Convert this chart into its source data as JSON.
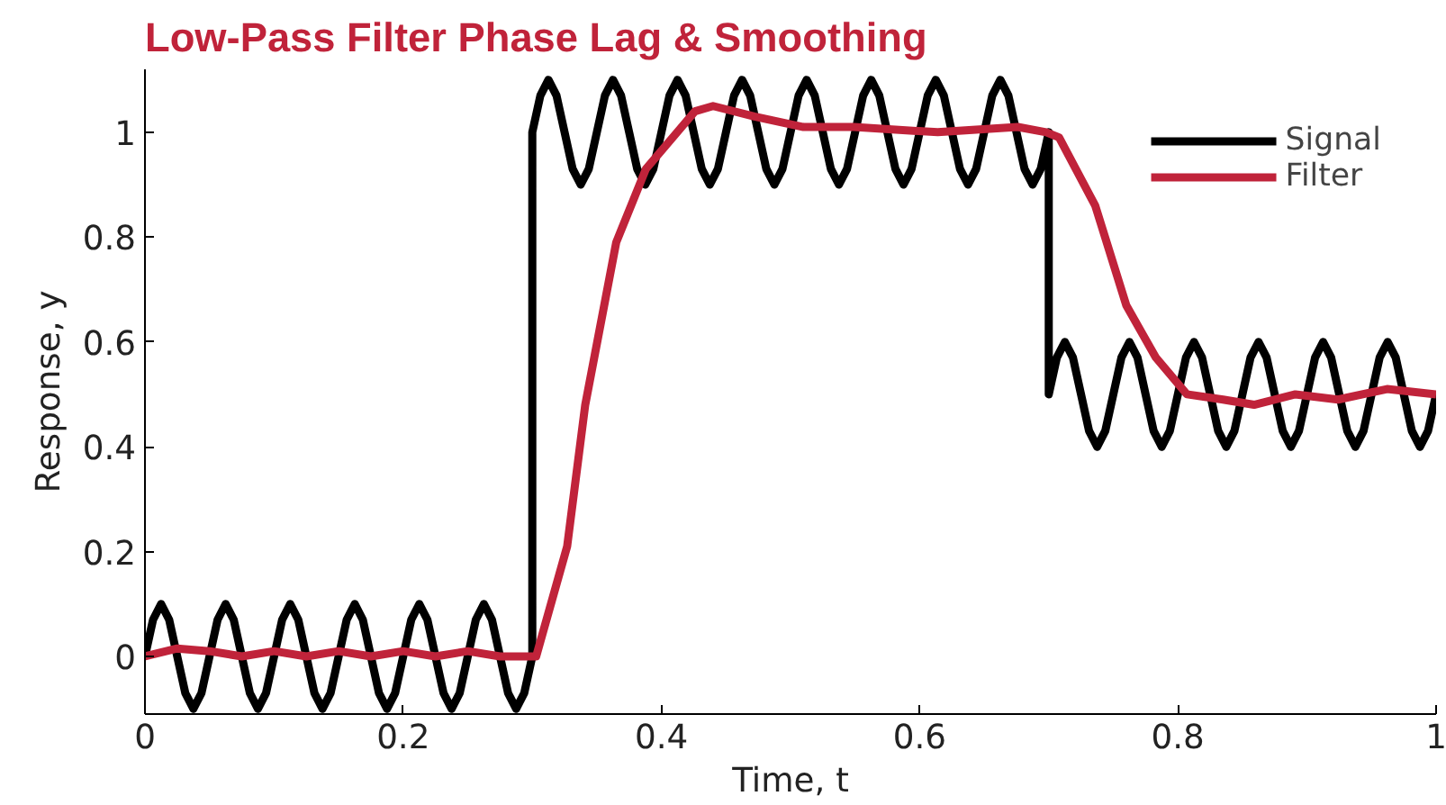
{
  "chart_data": {
    "type": "line",
    "title": "Low-Pass Filter Phase Lag & Smoothing",
    "xlabel": "Time, t",
    "ylabel": "Response, y",
    "xlim": [
      0,
      1
    ],
    "ylim": [
      -0.11,
      1.12
    ],
    "xticks": [
      0,
      0.2,
      0.4,
      0.6,
      0.8,
      1
    ],
    "yticks": [
      0,
      0.2,
      0.4,
      0.6,
      0.8,
      1
    ],
    "grid": false,
    "legend": "top right",
    "line_style": "solid",
    "marker": "none",
    "series": [
      {
        "name": "Signal",
        "color": "#000000",
        "x": [
          0,
          0.00625,
          0.0125,
          0.01875,
          0.025,
          0.03125,
          0.0375,
          0.04375,
          0.05,
          0.05625,
          0.0625,
          0.06875,
          0.075,
          0.08125,
          0.0875,
          0.09375,
          0.1,
          0.10625,
          0.1125,
          0.11875,
          0.125,
          0.13125,
          0.1375,
          0.14375,
          0.15,
          0.15625,
          0.1625,
          0.16875,
          0.175,
          0.18125,
          0.1875,
          0.19375,
          0.2,
          0.20625,
          0.2125,
          0.21875,
          0.225,
          0.23125,
          0.2375,
          0.24375,
          0.25,
          0.25625,
          0.2625,
          0.26875,
          0.275,
          0.28125,
          0.2875,
          0.29375,
          0.3,
          0.3,
          0.30625,
          0.3125,
          0.31875,
          0.325,
          0.33125,
          0.3375,
          0.34375,
          0.35,
          0.35625,
          0.3625,
          0.36875,
          0.375,
          0.38125,
          0.3875,
          0.39375,
          0.4,
          0.40625,
          0.4125,
          0.41875,
          0.425,
          0.43125,
          0.4375,
          0.44375,
          0.45,
          0.45625,
          0.4625,
          0.46875,
          0.475,
          0.48125,
          0.4875,
          0.49375,
          0.5,
          0.50625,
          0.5125,
          0.51875,
          0.525,
          0.53125,
          0.5375,
          0.54375,
          0.55,
          0.55625,
          0.5625,
          0.56875,
          0.575,
          0.58125,
          0.5875,
          0.59375,
          0.6,
          0.60625,
          0.6125,
          0.61875,
          0.625,
          0.63125,
          0.6375,
          0.64375,
          0.65,
          0.65625,
          0.6625,
          0.66875,
          0.675,
          0.68125,
          0.6875,
          0.69375,
          0.7,
          0.7,
          0.70625,
          0.7125,
          0.71875,
          0.725,
          0.73125,
          0.7375,
          0.74375,
          0.75,
          0.75625,
          0.7625,
          0.76875,
          0.775,
          0.78125,
          0.7875,
          0.79375,
          0.8,
          0.80625,
          0.8125,
          0.81875,
          0.825,
          0.83125,
          0.8375,
          0.84375,
          0.85,
          0.85625,
          0.8625,
          0.86875,
          0.875,
          0.88125,
          0.8875,
          0.89375,
          0.9,
          0.90625,
          0.9125,
          0.91875,
          0.925,
          0.93125,
          0.9375,
          0.94375,
          0.95,
          0.95625,
          0.9625,
          0.96875,
          0.975,
          0.98125,
          0.9875,
          0.99375,
          1
        ],
        "values": [
          0,
          0.07,
          0.1,
          0.07,
          0,
          -0.07,
          -0.1,
          -0.07,
          0,
          0.07,
          0.1,
          0.07,
          0,
          -0.07,
          -0.1,
          -0.07,
          0,
          0.07,
          0.1,
          0.07,
          0,
          -0.07,
          -0.1,
          -0.07,
          0,
          0.07,
          0.1,
          0.07,
          0,
          -0.07,
          -0.1,
          -0.07,
          0,
          0.07,
          0.1,
          0.07,
          0,
          -0.07,
          -0.1,
          -0.07,
          0,
          0.07,
          0.1,
          0.07,
          0,
          -0.07,
          -0.1,
          -0.07,
          0,
          1,
          1.07,
          1.1,
          1.07,
          1,
          0.93,
          0.9,
          0.93,
          1,
          1.07,
          1.1,
          1.07,
          1,
          0.93,
          0.9,
          0.93,
          1,
          1.07,
          1.1,
          1.07,
          1,
          0.93,
          0.9,
          0.93,
          1,
          1.07,
          1.1,
          1.07,
          1,
          0.93,
          0.9,
          0.93,
          1,
          1.07,
          1.1,
          1.07,
          1,
          0.93,
          0.9,
          0.93,
          1,
          1.07,
          1.1,
          1.07,
          1,
          0.93,
          0.9,
          0.93,
          1,
          1.07,
          1.1,
          1.07,
          1,
          0.93,
          0.9,
          0.93,
          1,
          1.07,
          1.1,
          1.07,
          1,
          0.93,
          0.9,
          0.93,
          1,
          0.5,
          0.57,
          0.6,
          0.57,
          0.5,
          0.43,
          0.4,
          0.43,
          0.5,
          0.57,
          0.6,
          0.57,
          0.5,
          0.43,
          0.4,
          0.43,
          0.5,
          0.57,
          0.6,
          0.57,
          0.5,
          0.43,
          0.4,
          0.43,
          0.5,
          0.57,
          0.6,
          0.57,
          0.5,
          0.43,
          0.4,
          0.43,
          0.5,
          0.57,
          0.6,
          0.57,
          0.5,
          0.43,
          0.4,
          0.43,
          0.5,
          0.57,
          0.6,
          0.57,
          0.5,
          0.43,
          0.4,
          0.43,
          0.5
        ]
      },
      {
        "name": "Filter",
        "color": "#c0233a",
        "x": [
          0,
          0.025,
          0.05,
          0.075,
          0.1,
          0.125,
          0.15,
          0.175,
          0.2,
          0.225,
          0.25,
          0.275,
          0.303,
          0.327,
          0.341,
          0.365,
          0.388,
          0.426,
          0.44,
          0.472,
          0.51,
          0.549,
          0.614,
          0.676,
          0.698,
          0.708,
          0.736,
          0.76,
          0.783,
          0.807,
          0.835,
          0.859,
          0.891,
          0.924,
          0.962,
          1
        ],
        "values": [
          0,
          0.015,
          0.01,
          0,
          0.01,
          0,
          0.01,
          0,
          0.01,
          0,
          0.01,
          0,
          0,
          0.21,
          0.48,
          0.79,
          0.93,
          1.04,
          1.05,
          1.03,
          1.01,
          1.01,
          1.0,
          1.01,
          1.0,
          0.99,
          0.86,
          0.67,
          0.57,
          0.5,
          0.49,
          0.48,
          0.5,
          0.49,
          0.51,
          0.5
        ]
      }
    ]
  }
}
